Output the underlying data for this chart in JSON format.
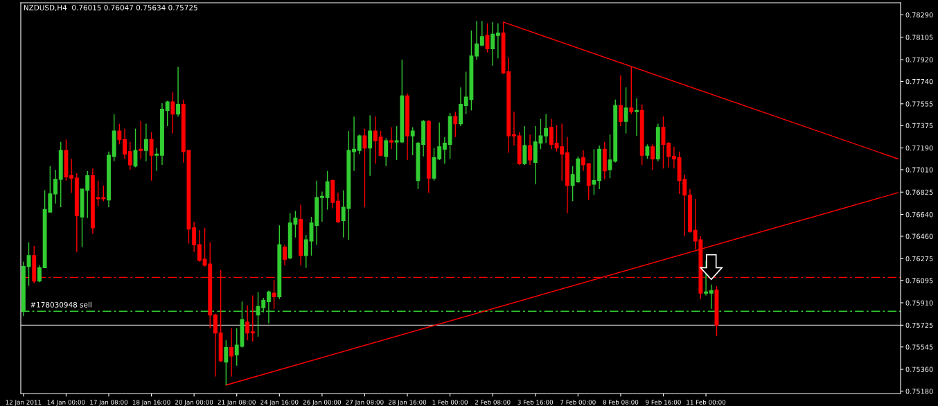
{
  "chart_data": {
    "type": "candlestick",
    "title": "NZDUSD,H4  0.76015 0.76047 0.75634 0.75725",
    "categories": [
      "12 Jan 2011",
      null,
      null,
      null,
      null,
      null,
      null,
      null,
      "14 Jan 00:00",
      null,
      null,
      null,
      null,
      null,
      null,
      null,
      "17 Jan 08:00",
      null,
      null,
      null,
      null,
      null,
      null,
      null,
      "18 Jan 16:00",
      null,
      null,
      null,
      null,
      null,
      null,
      null,
      "20 Jan 00:00",
      null,
      null,
      null,
      null,
      null,
      null,
      null,
      "21 Jan 08:00",
      null,
      null,
      null,
      null,
      null,
      null,
      null,
      "24 Jan 16:00",
      null,
      null,
      null,
      null,
      null,
      null,
      null,
      "26 Jan 00:00",
      null,
      null,
      null,
      null,
      null,
      null,
      null,
      "27 Jan 08:00",
      null,
      null,
      null,
      null,
      null,
      null,
      null,
      "28 Jan 16:00",
      null,
      null,
      null,
      null,
      null,
      null,
      null,
      "1 Feb 00:00",
      null,
      null,
      null,
      null,
      null,
      null,
      null,
      "2 Feb 08:00",
      null,
      null,
      null,
      null,
      null,
      null,
      null,
      "3 Feb 16:00",
      null,
      null,
      null,
      null,
      null,
      null,
      null,
      "7 Feb 00:00",
      null,
      null,
      null,
      null,
      null,
      null,
      null,
      "8 Feb 08:00",
      null,
      null,
      null,
      null,
      null,
      null,
      null,
      "9 Feb 16:00",
      null,
      null,
      null,
      null,
      null,
      null,
      null,
      "11 Feb 00:00",
      null,
      null,
      null,
      null,
      null,
      null,
      null,
      null,
      null,
      null,
      null,
      null,
      null,
      null,
      null,
      null,
      null,
      null,
      null,
      null,
      null,
      null,
      null,
      null,
      null,
      null,
      null,
      null,
      null,
      null,
      null,
      null,
      null,
      null,
      null,
      null
    ],
    "colors": [
      "#32cd32",
      "#32cd32",
      "#ff0000",
      "#32cd32",
      "#32cd32",
      "#32cd32",
      "#32cd32",
      "#32cd32",
      "#ff0000",
      "#ff0000",
      "#ff0000",
      "#32cd32",
      "#32cd32",
      "#ff0000",
      "#ff0000",
      "#ff0000",
      "#32cd32",
      "#32cd32",
      "#ff0000",
      "#ff0000",
      "#ff0000",
      "#32cd32",
      "#ff0000",
      "#32cd32",
      "#ff0000",
      "#32cd32",
      "#32cd32",
      "#32cd32",
      "#ff0000",
      "#32cd32",
      "#ff0000",
      "#ff0000",
      "#ff0000",
      "#ff0000",
      "#ff0000",
      "#ff0000",
      "#ff0000",
      "#ff0000",
      "#32cd32",
      "#ff0000",
      "#32cd32",
      "#32cd32",
      "#ff0000",
      "#ff0000",
      "#32cd32",
      "#32cd32",
      "#32cd32",
      "#ff0000",
      "#32cd32",
      "#ff0000",
      "#32cd32",
      "#32cd32",
      "#ff0000",
      "#32cd32",
      "#32cd32",
      "#32cd32",
      "#32cd32",
      "#32cd32",
      "#ff0000",
      "#ff0000",
      "#32cd32",
      "#32cd32",
      "#32cd32",
      "#32cd32",
      "#ff0000",
      "#32cd32",
      "#ff0000",
      "#ff0000",
      "#32cd32",
      "#ff0000",
      "#32cd32",
      "#32cd32",
      "#ff0000",
      "#32cd32",
      "#32cd32",
      "#32cd32",
      "#ff0000",
      "#32cd32",
      "#32cd32",
      "#32cd32",
      "#32cd32",
      "#ff0000",
      "#32cd32",
      "#32cd32",
      "#32cd32",
      "#32cd32",
      "#32cd32",
      "#ff0000",
      "#32cd32",
      "#32cd32",
      "#ff0000",
      "#ff0000",
      "#ff0000",
      "#ff0000",
      "#32cd32",
      "#ff0000",
      "#32cd32",
      "#32cd32",
      "#32cd32",
      "#ff0000",
      "#ff0000",
      "#ff0000",
      "#ff0000",
      "#32cd32",
      "#32cd32",
      "#ff0000",
      "#ff0000",
      "#32cd32",
      "#32cd32",
      "#ff0000",
      "#32cd32",
      "#32cd32",
      "#ff0000",
      "#32cd32",
      "#ff0000",
      "#32cd32",
      "#ff0000",
      "#32cd32",
      "#ff0000",
      "#32cd32",
      "#ff0000",
      "#ff0000",
      "#ff0000",
      "#ff0000",
      "#ff0000",
      "#ff0000",
      "#ff0000",
      "#ff0000",
      "#32cd32",
      "#32cd32",
      "#ff0000",
      null,
      null,
      null,
      null,
      null,
      null,
      null,
      null,
      null,
      null,
      null,
      null,
      null,
      null,
      null,
      null,
      null,
      null,
      null,
      null,
      null,
      null,
      null,
      null,
      null,
      null,
      null,
      null,
      null,
      null,
      null,
      null,
      null,
      null
    ],
    "ohlc": [
      [
        0.7584,
        0.7625,
        0.758,
        0.7621
      ],
      [
        0.7621,
        0.7641,
        0.7605,
        0.763
      ],
      [
        0.763,
        0.7638,
        0.7607,
        0.7609
      ],
      [
        0.7609,
        0.7622,
        0.7608,
        0.762
      ],
      [
        0.762,
        0.7684,
        0.762,
        0.7668
      ],
      [
        0.7666,
        0.7704,
        0.7666,
        0.7681
      ],
      [
        0.7681,
        0.7701,
        0.7673,
        0.7693
      ],
      [
        0.7693,
        0.7724,
        0.767,
        0.7717
      ],
      [
        0.7717,
        0.7726,
        0.7692,
        0.7695
      ],
      [
        0.7696,
        0.771,
        0.7682,
        0.7694
      ],
      [
        0.7694,
        0.7698,
        0.7633,
        0.7663
      ],
      [
        0.7662,
        0.7685,
        0.7637,
        0.7685
      ],
      [
        0.7684,
        0.77,
        0.7661,
        0.7696
      ],
      [
        0.7696,
        0.7702,
        0.7648,
        0.7653
      ],
      [
        0.7678,
        0.7692,
        0.7671,
        0.7677
      ],
      [
        0.7678,
        0.7688,
        0.7675,
        0.7677
      ],
      [
        0.7676,
        0.7716,
        0.767,
        0.7713
      ],
      [
        0.7712,
        0.7747,
        0.7708,
        0.7733
      ],
      [
        0.7733,
        0.7739,
        0.7722,
        0.7726
      ],
      [
        0.7726,
        0.7735,
        0.771,
        0.7714
      ],
      [
        0.7716,
        0.7724,
        0.7701,
        0.7705
      ],
      [
        0.7704,
        0.7735,
        0.7703,
        0.7717
      ],
      [
        0.7718,
        0.7741,
        0.771,
        0.7717
      ],
      [
        0.7717,
        0.7739,
        0.7708,
        0.7726
      ],
      [
        0.7726,
        0.7732,
        0.7692,
        0.7713
      ],
      [
        0.7713,
        0.7719,
        0.77,
        0.7714
      ],
      [
        0.7713,
        0.7756,
        0.7705,
        0.7751
      ],
      [
        0.775,
        0.7758,
        0.7737,
        0.7757
      ],
      [
        0.7757,
        0.7765,
        0.7731,
        0.7747
      ],
      [
        0.7747,
        0.7786,
        0.7745,
        0.7755
      ],
      [
        0.7755,
        0.7759,
        0.7707,
        0.7716
      ],
      [
        0.7717,
        0.7717,
        0.764,
        0.7652
      ],
      [
        0.7653,
        0.7658,
        0.7633,
        0.7639
      ],
      [
        0.7639,
        0.7651,
        0.7625,
        0.7626
      ],
      [
        0.7627,
        0.7653,
        0.7621,
        0.7622
      ],
      [
        0.7623,
        0.7641,
        0.757,
        0.7581
      ],
      [
        0.7581,
        0.7582,
        0.753,
        0.7566
      ],
      [
        0.7566,
        0.7618,
        0.7542,
        0.7543
      ],
      [
        0.7542,
        0.756,
        0.7523,
        0.7554
      ],
      [
        0.7554,
        0.757,
        0.753,
        0.7547
      ],
      [
        0.7548,
        0.757,
        0.7539,
        0.7556
      ],
      [
        0.7555,
        0.7592,
        0.7554,
        0.7577
      ],
      [
        0.7575,
        0.7589,
        0.756,
        0.7566
      ],
      [
        0.7567,
        0.7597,
        0.7559,
        0.7566
      ],
      [
        0.7581,
        0.76,
        0.7563,
        0.7588
      ],
      [
        0.7587,
        0.7595,
        0.7583,
        0.7593
      ],
      [
        0.7592,
        0.7601,
        0.7574,
        0.76
      ],
      [
        0.7599,
        0.761,
        0.7586,
        0.7596
      ],
      [
        0.7596,
        0.7655,
        0.7594,
        0.7639
      ],
      [
        0.7637,
        0.7639,
        0.7622,
        0.7627
      ],
      [
        0.7628,
        0.7665,
        0.7627,
        0.7657
      ],
      [
        0.7656,
        0.7667,
        0.7645,
        0.7661
      ],
      [
        0.766,
        0.7672,
        0.7622,
        0.763
      ],
      [
        0.763,
        0.7647,
        0.762,
        0.7643
      ],
      [
        0.7642,
        0.7662,
        0.763,
        0.7657
      ],
      [
        0.7655,
        0.7692,
        0.7639,
        0.7678
      ],
      [
        0.7678,
        0.7683,
        0.7658,
        0.7679
      ],
      [
        0.7678,
        0.77,
        0.7668,
        0.7691
      ],
      [
        0.7692,
        0.7693,
        0.7669,
        0.7674
      ],
      [
        0.7675,
        0.7682,
        0.7657,
        0.7658
      ],
      [
        0.7659,
        0.7684,
        0.7645,
        0.767
      ],
      [
        0.7669,
        0.7733,
        0.7643,
        0.7717
      ],
      [
        0.7716,
        0.7745,
        0.77,
        0.7718
      ],
      [
        0.7717,
        0.773,
        0.7714,
        0.7729
      ],
      [
        0.7729,
        0.7735,
        0.767,
        0.7719
      ],
      [
        0.7719,
        0.7746,
        0.7696,
        0.7733
      ],
      [
        0.7733,
        0.7745,
        0.7706,
        0.7725
      ],
      [
        0.7728,
        0.7733,
        0.7712,
        0.7713
      ],
      [
        0.7712,
        0.7727,
        0.7704,
        0.7725
      ],
      [
        0.7725,
        0.7736,
        0.7718,
        0.7724
      ],
      [
        0.7724,
        0.7737,
        0.7709,
        0.7725
      ],
      [
        0.7724,
        0.7792,
        0.7723,
        0.7762
      ],
      [
        0.7762,
        0.7764,
        0.7709,
        0.7729
      ],
      [
        0.7729,
        0.7736,
        0.7713,
        0.7733
      ],
      [
        0.7692,
        0.7724,
        0.7685,
        0.7723
      ],
      [
        0.7722,
        0.7742,
        0.7712,
        0.7741
      ],
      [
        0.7741,
        0.7742,
        0.7682,
        0.7694
      ],
      [
        0.7694,
        0.7719,
        0.7692,
        0.7711
      ],
      [
        0.771,
        0.774,
        0.7709,
        0.772
      ],
      [
        0.7718,
        0.7728,
        0.7706,
        0.7723
      ],
      [
        0.7722,
        0.7748,
        0.771,
        0.7745
      ],
      [
        0.7745,
        0.7749,
        0.7728,
        0.7739
      ],
      [
        0.7739,
        0.7769,
        0.7737,
        0.7755
      ],
      [
        0.7754,
        0.7782,
        0.7747,
        0.7761
      ],
      [
        0.7759,
        0.7816,
        0.775,
        0.7795
      ],
      [
        0.7795,
        0.7824,
        0.7792,
        0.7805
      ],
      [
        0.7804,
        0.7824,
        0.7803,
        0.7811
      ],
      [
        0.7812,
        0.7822,
        0.7798,
        0.7801
      ],
      [
        0.7801,
        0.7823,
        0.7787,
        0.7813
      ],
      [
        0.7812,
        0.7822,
        0.7793,
        0.7814
      ],
      [
        0.7814,
        0.7823,
        0.778,
        0.7781
      ],
      [
        0.7782,
        0.7794,
        0.7715,
        0.7729
      ],
      [
        0.773,
        0.7749,
        0.7721,
        0.7729
      ],
      [
        0.7729,
        0.7732,
        0.7705,
        0.7706
      ],
      [
        0.7706,
        0.7737,
        0.7705,
        0.7721
      ],
      [
        0.7721,
        0.773,
        0.7705,
        0.7709
      ],
      [
        0.7707,
        0.7737,
        0.7689,
        0.7724
      ],
      [
        0.7723,
        0.7743,
        0.7718,
        0.7729
      ],
      [
        0.7729,
        0.7747,
        0.7723,
        0.7735
      ],
      [
        0.7736,
        0.7743,
        0.7718,
        0.7722
      ],
      [
        0.7723,
        0.7738,
        0.7716,
        0.7719
      ],
      [
        0.772,
        0.7739,
        0.7692,
        0.7714
      ],
      [
        0.7715,
        0.7728,
        0.7665,
        0.7688
      ],
      [
        0.7688,
        0.7704,
        0.7675,
        0.7697
      ],
      [
        0.7691,
        0.7712,
        0.769,
        0.771
      ],
      [
        0.7711,
        0.7717,
        0.77,
        0.7705
      ],
      [
        0.7706,
        0.7706,
        0.7676,
        0.7688
      ],
      [
        0.7689,
        0.7718,
        0.768,
        0.7692
      ],
      [
        0.7692,
        0.7721,
        0.7685,
        0.7718
      ],
      [
        0.7718,
        0.7724,
        0.7693,
        0.77
      ],
      [
        0.7701,
        0.773,
        0.7694,
        0.7709
      ],
      [
        0.7708,
        0.7759,
        0.7707,
        0.7754
      ],
      [
        0.7754,
        0.7779,
        0.7737,
        0.7741
      ],
      [
        0.7741,
        0.7769,
        0.7731,
        0.7752
      ],
      [
        0.7752,
        0.7786,
        0.7747,
        0.7749
      ],
      [
        0.7749,
        0.776,
        0.7729,
        0.775
      ],
      [
        0.775,
        0.7755,
        0.7705,
        0.7713
      ],
      [
        0.7713,
        0.7722,
        0.771,
        0.772
      ],
      [
        0.772,
        0.7722,
        0.7701,
        0.771
      ],
      [
        0.771,
        0.7739,
        0.7708,
        0.7736
      ],
      [
        0.7736,
        0.7745,
        0.7702,
        0.7722
      ],
      [
        0.7723,
        0.7724,
        0.7703,
        0.7712
      ],
      [
        0.7712,
        0.772,
        0.7702,
        0.771
      ],
      [
        0.7711,
        0.7716,
        0.7681,
        0.7692
      ],
      [
        0.7693,
        0.7697,
        0.7646,
        0.768
      ],
      [
        0.768,
        0.7685,
        0.7649,
        0.765
      ],
      [
        0.7651,
        0.7677,
        0.7635,
        0.7642
      ],
      [
        0.7643,
        0.7646,
        0.7594,
        0.7599
      ],
      [
        0.7599,
        0.7626,
        0.7597,
        0.76
      ],
      [
        0.7599,
        0.7606,
        0.7586,
        0.7601
      ],
      [
        0.76015,
        0.76047,
        0.75634,
        0.75725
      ],
      null,
      null,
      null,
      null,
      null,
      null,
      null,
      null,
      null,
      null,
      null,
      null,
      null,
      null,
      null,
      null,
      null,
      null,
      null,
      null,
      null,
      null,
      null,
      null,
      null,
      null,
      null,
      null,
      null,
      null,
      null,
      null,
      null,
      null
    ],
    "series": [
      {
        "type": "line",
        "color": "#ff0000",
        "values": [
          null,
          null,
          null,
          null,
          null,
          null,
          null,
          null,
          null,
          null,
          null,
          null,
          null,
          null,
          null,
          null,
          null,
          null,
          null,
          null,
          null,
          null,
          null,
          null,
          null,
          null,
          null,
          null,
          null,
          null,
          null,
          null,
          null,
          null,
          null,
          null,
          null,
          null,
          null,
          null,
          null,
          null,
          null,
          null,
          null,
          null,
          null,
          null,
          null,
          null,
          null,
          null,
          null,
          null,
          null,
          null,
          null,
          null,
          null,
          null,
          null,
          null,
          null,
          null,
          null,
          null,
          null,
          null,
          null,
          null,
          null,
          null,
          null,
          null,
          null,
          null,
          null,
          null,
          null,
          null,
          null,
          null,
          null,
          null,
          null,
          null,
          null,
          null,
          null,
          null,
          0.7823,
          null,
          null,
          null,
          null,
          null,
          null,
          null,
          null,
          null,
          null,
          null,
          null,
          null,
          null,
          null,
          null,
          null,
          null,
          null,
          null,
          null,
          null,
          null,
          null,
          null,
          null,
          null,
          null,
          null,
          null,
          null,
          null,
          null,
          null,
          null,
          null,
          null,
          null,
          null,
          null,
          null,
          null,
          null,
          null,
          null,
          null,
          null,
          null,
          null,
          null,
          null,
          null,
          null,
          null,
          null,
          null,
          null,
          null,
          null,
          null,
          null,
          null,
          null,
          null,
          null,
          null,
          null,
          null,
          null,
          null,
          null,
          null,
          null,
          0.771
        ]
      },
      {
        "type": "line",
        "color": "#ff0000",
        "values": [
          null,
          null,
          null,
          null,
          null,
          null,
          null,
          null,
          null,
          null,
          null,
          null,
          null,
          null,
          null,
          null,
          null,
          null,
          null,
          null,
          null,
          null,
          null,
          null,
          null,
          null,
          null,
          null,
          null,
          null,
          null,
          null,
          null,
          null,
          null,
          null,
          null,
          null,
          0.7523,
          null,
          null,
          null,
          null,
          null,
          null,
          null,
          null,
          null,
          null,
          null,
          null,
          null,
          null,
          null,
          null,
          null,
          null,
          null,
          null,
          null,
          null,
          null,
          null,
          null,
          null,
          null,
          null,
          null,
          null,
          null,
          null,
          null,
          null,
          null,
          null,
          null,
          null,
          null,
          null,
          null,
          null,
          null,
          null,
          null,
          null,
          null,
          null,
          null,
          null,
          null,
          null,
          null,
          null,
          null,
          null,
          null,
          null,
          null,
          null,
          null,
          null,
          null,
          null,
          null,
          null,
          null,
          null,
          null,
          null,
          null,
          null,
          null,
          null,
          null,
          null,
          null,
          null,
          null,
          null,
          null,
          null,
          null,
          null,
          null,
          null,
          null,
          null,
          null,
          null,
          null,
          null,
          null,
          null,
          null,
          null,
          null,
          null,
          null,
          null,
          null,
          null,
          null,
          null,
          null,
          null,
          null,
          null,
          null,
          null,
          null,
          null,
          null,
          null,
          null,
          null,
          null,
          null,
          null,
          null,
          null,
          null,
          null,
          null,
          null,
          0.7682
        ]
      }
    ],
    "ref_lines": [
      {
        "axis": "y",
        "value": 0.7612,
        "color": "#ff0000",
        "line_style": "dashed"
      },
      {
        "axis": "y",
        "value": 0.7584,
        "label": "#178030948 sell",
        "color": "#32cd32",
        "line_style": "dashed"
      },
      {
        "axis": "y",
        "value": 0.75725,
        "color": "#c0c0c0",
        "line_style": "solid"
      }
    ],
    "ylim": [
      0.7516,
      0.7839
    ],
    "yticks": [
      {
        "value": 0.7829,
        "label": "0.78290"
      },
      {
        "value": 0.78105,
        "label": "0.78105"
      },
      {
        "value": 0.7792,
        "label": "0.77920"
      },
      {
        "value": 0.7774,
        "label": "0.77740"
      },
      {
        "value": 0.77555,
        "label": "0.77555"
      },
      {
        "value": 0.77375,
        "label": "0.77375"
      },
      {
        "value": 0.7719,
        "label": "0.77190"
      },
      {
        "value": 0.7701,
        "label": "0.77010"
      },
      {
        "value": 0.76825,
        "label": "0.76825"
      },
      {
        "value": 0.7664,
        "label": "0.76640"
      },
      {
        "value": 0.7646,
        "label": "0.76460"
      },
      {
        "value": 0.76275,
        "label": "0.76275"
      },
      {
        "value": 0.76095,
        "label": "0.76095"
      },
      {
        "value": 0.7591,
        "label": "0.75910"
      },
      {
        "value": 0.75725,
        "label": "0.75725"
      },
      {
        "value": 0.75545,
        "label": "0.75545"
      },
      {
        "value": 0.7536,
        "label": "0.75360"
      },
      {
        "value": 0.7518,
        "label": "0.75180"
      }
    ]
  }
}
